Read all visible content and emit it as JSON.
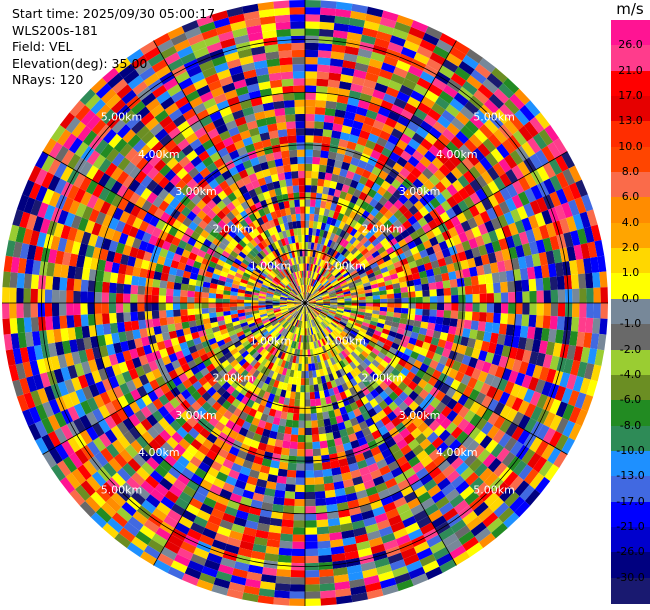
{
  "info": {
    "start_time": "Start time: 2025/09/30 05:00:17",
    "instrument": "WLS200s-181",
    "field": "Field: VEL",
    "elevation": "Elevation(deg): 35.00",
    "nrays": "NRays: 120"
  },
  "chart_data": {
    "type": "heatmap",
    "projection": "polar-ppi",
    "field": "VEL",
    "units": "m/s",
    "nrays": 120,
    "elevation_deg": 35.0,
    "range_rings_km": [
      "1.00km",
      "2.00km",
      "3.00km",
      "4.00km",
      "5.00km"
    ],
    "range_ring_values_km": [
      1,
      2,
      3,
      4,
      5
    ],
    "colorbar": {
      "unit": "m/s",
      "range": [
        -30.0,
        30.0
      ],
      "tick_labels": [
        "26.0",
        "21.0",
        "17.0",
        "13.0",
        "10.0",
        "8.0",
        "6.0",
        "4.0",
        "2.0",
        "1.0",
        "0.0",
        "-1.0",
        "-2.0",
        "-4.0",
        "-6.0",
        "-8.0",
        "-10.0",
        "-13.0",
        "-17.0",
        "-21.0",
        "-26.0",
        "-30.0"
      ],
      "colors_top_to_bottom": [
        "#ff1493",
        "#ff3c8c",
        "#ff0000",
        "#e60000",
        "#ff2d00",
        "#ff4500",
        "#fa6b4a",
        "#ff8c00",
        "#ffa500",
        "#ffd700",
        "#ffff00",
        "#778899",
        "#696969",
        "#9acd32",
        "#6b8e23",
        "#228b22",
        "#2e8b57",
        "#1e90ff",
        "#4169e1",
        "#0000ff",
        "#0000cd",
        "#000080",
        "#191970"
      ]
    }
  }
}
